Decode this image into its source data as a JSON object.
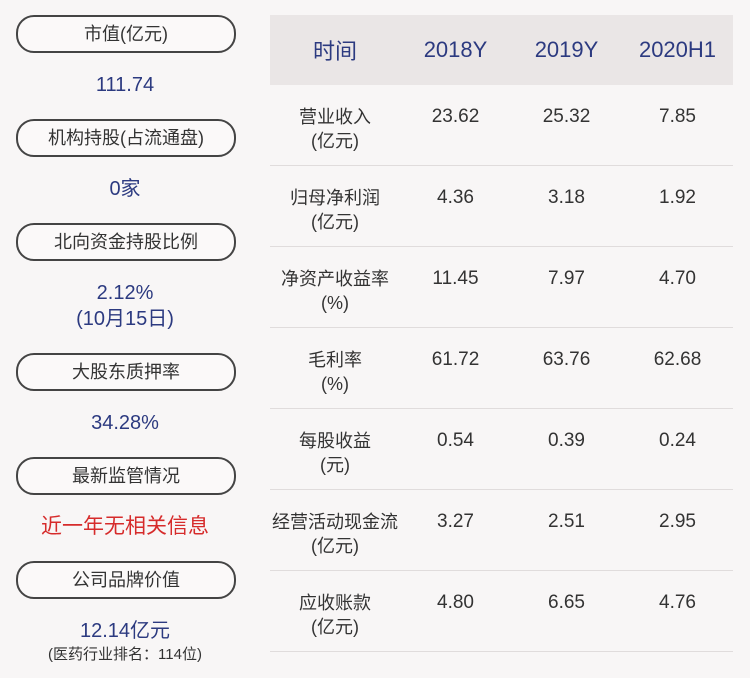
{
  "left_panel": {
    "market_value_label": "市值(亿元)",
    "market_value": "111.74",
    "institution_label": "机构持股(占流通盘)",
    "institution_value": "0家",
    "northbound_label": "北向资金持股比例",
    "northbound_value": "2.12%",
    "northbound_date": "(10月15日)",
    "pledge_label": "大股东质押率",
    "pledge_value": "34.28%",
    "regulation_label": "最新监管情况",
    "regulation_value": "近一年无相关信息",
    "brand_label": "公司品牌价值",
    "brand_value": "12.14亿元",
    "brand_rank": "(医药行业排名：114位)"
  },
  "table": {
    "headers": [
      "时间",
      "2018Y",
      "2019Y",
      "2020H1"
    ],
    "rows": [
      {
        "label1": "营业收入",
        "label2": "(亿元)",
        "values": [
          "23.62",
          "25.32",
          "7.85"
        ]
      },
      {
        "label1": "归母净利润",
        "label2": "(亿元)",
        "values": [
          "4.36",
          "3.18",
          "1.92"
        ]
      },
      {
        "label1": "净资产收益率",
        "label2": "(%)",
        "values": [
          "11.45",
          "7.97",
          "4.70"
        ]
      },
      {
        "label1": "毛利率",
        "label2": "(%)",
        "values": [
          "61.72",
          "63.76",
          "62.68"
        ]
      },
      {
        "label1": "每股收益",
        "label2": "(元)",
        "values": [
          "0.54",
          "0.39",
          "0.24"
        ]
      },
      {
        "label1": "经营活动现金流",
        "label2": "(亿元)",
        "values": [
          "3.27",
          "2.51",
          "2.95"
        ]
      },
      {
        "label1": "应收账款",
        "label2": "(亿元)",
        "values": [
          "4.80",
          "6.65",
          "4.76"
        ]
      }
    ]
  },
  "colors": {
    "value_blue": "#2c3a80",
    "alert_red": "#d62b2b",
    "header_bg": "#eae6e6"
  }
}
